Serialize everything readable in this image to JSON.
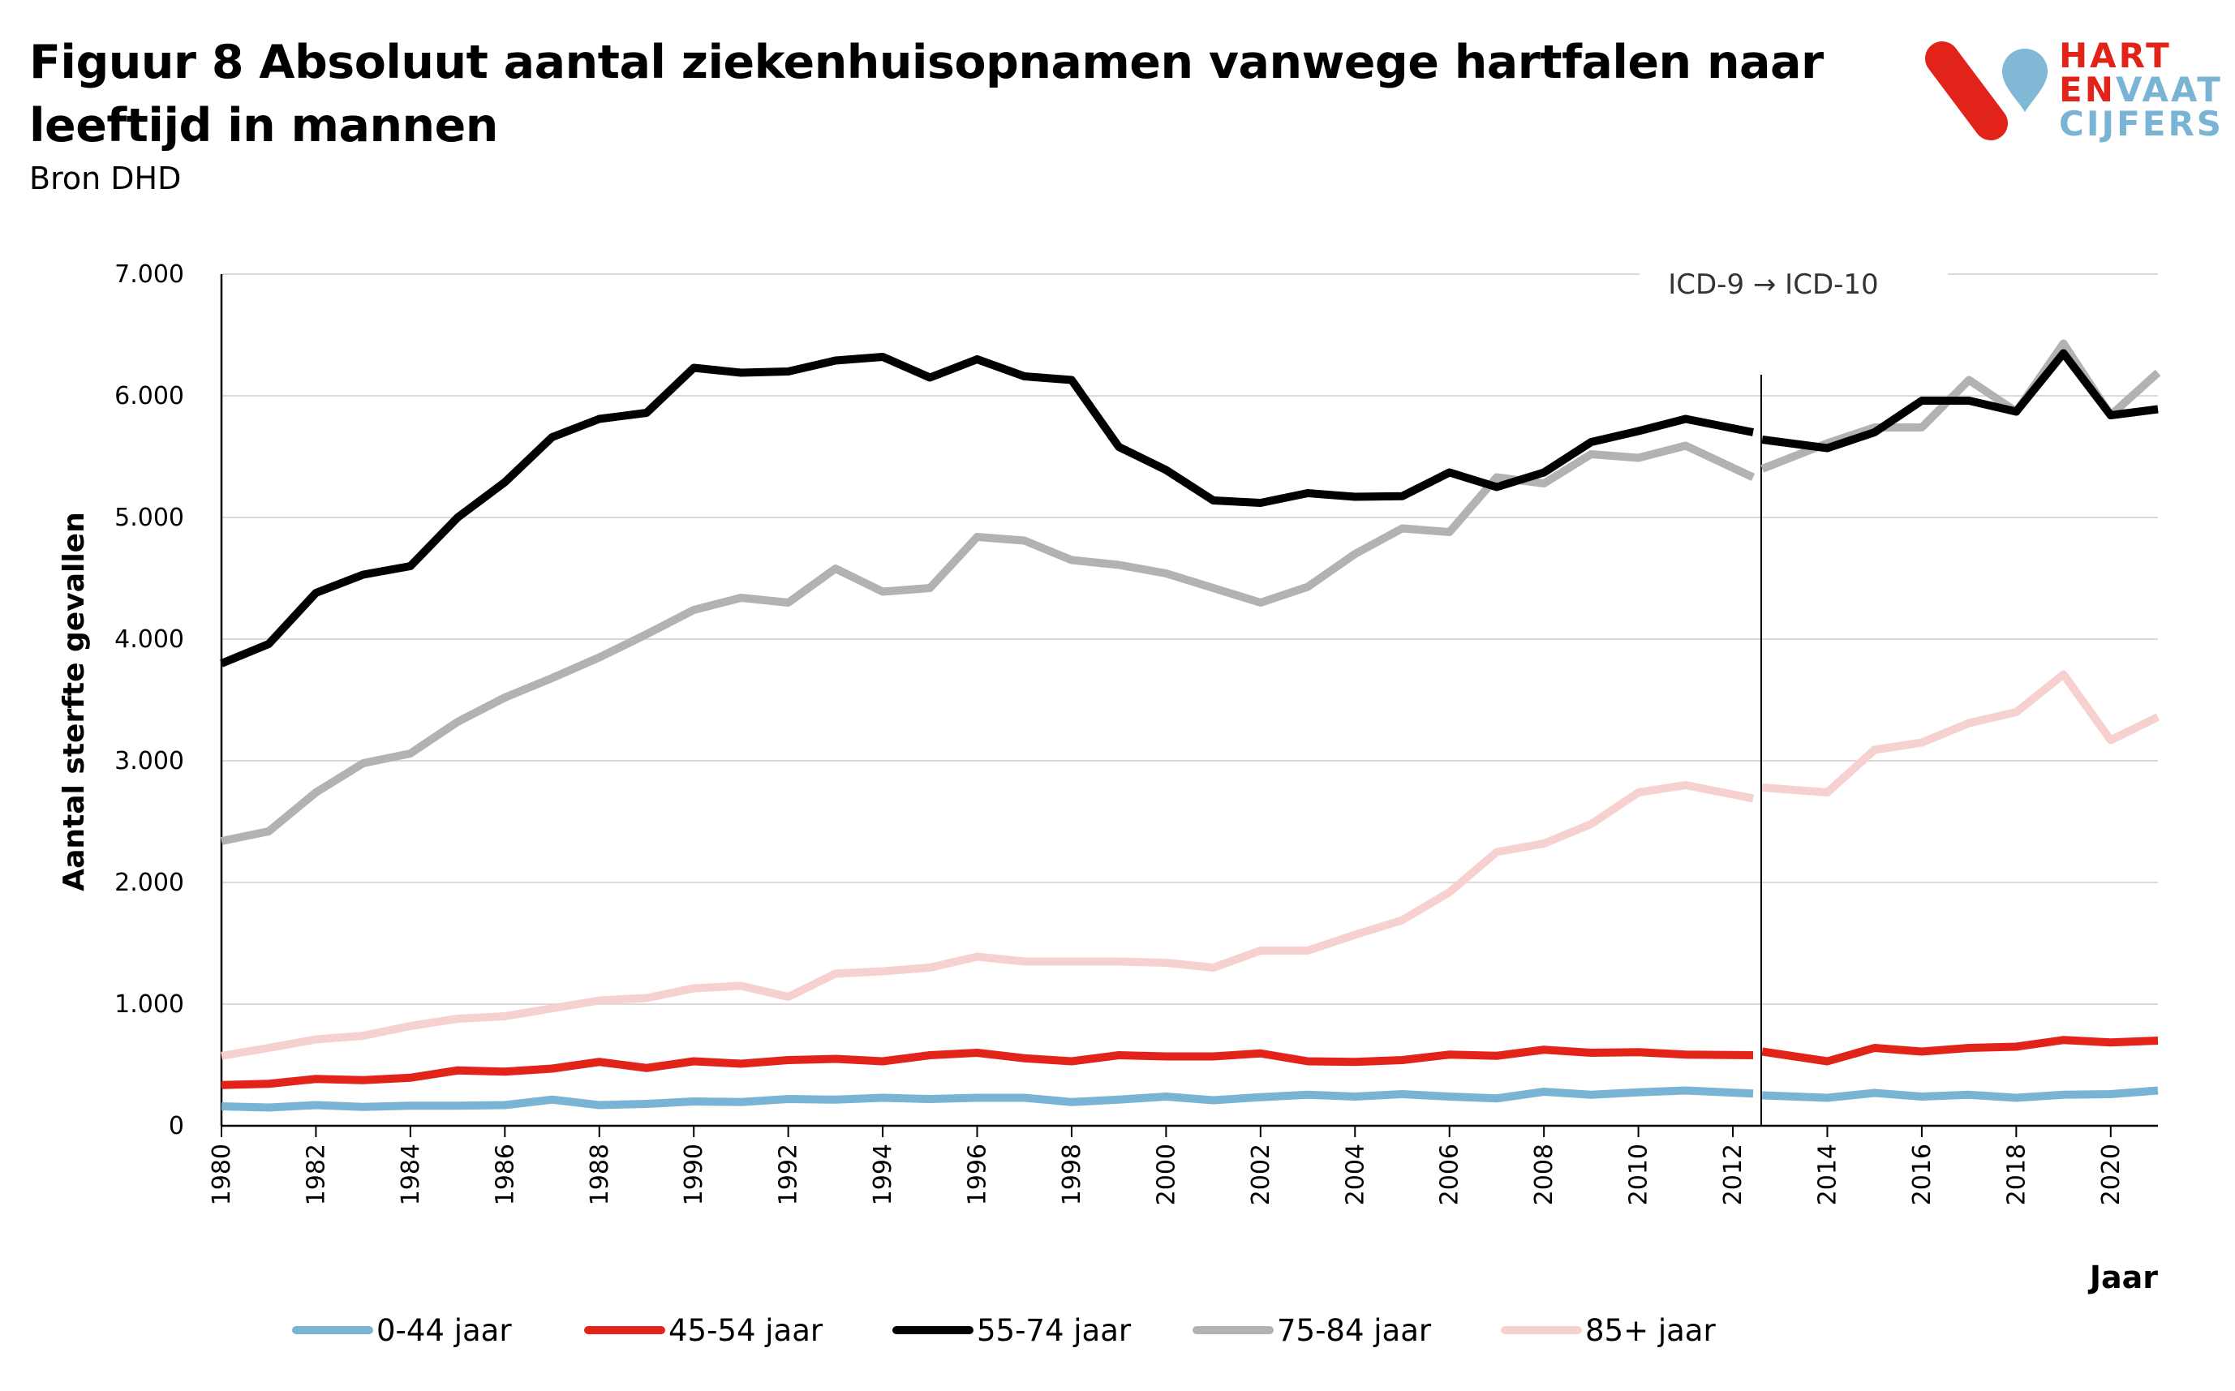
{
  "header": {
    "title": "Figuur 8 Absoluut aantal ziekenhuisopnamen vanwege hartfalen naar leeftijd in mannen",
    "source": "Bron DHD"
  },
  "logo": {
    "line1": "HART",
    "line2a": "EN",
    "line2b": "VAAT",
    "line3": "CIJFERS",
    "colors": {
      "red": "#e2231a",
      "blue": "#7ab4d4"
    }
  },
  "chart_data": {
    "type": "line",
    "title": "Figuur 8 Absoluut aantal ziekenhuisopnamen vanwege hartfalen naar leeftijd in mannen",
    "xlabel": "Jaar",
    "ylabel": "Aantal sterfte gevallen",
    "ylim": [
      0,
      7000
    ],
    "xlim": [
      1980,
      2021
    ],
    "yticks": [
      {
        "value": 0,
        "label": "0"
      },
      {
        "value": 1000,
        "label": "1.000"
      },
      {
        "value": 2000,
        "label": "2.000"
      },
      {
        "value": 3000,
        "label": "3.000"
      },
      {
        "value": 4000,
        "label": "4.000"
      },
      {
        "value": 5000,
        "label": "5.000"
      },
      {
        "value": 6000,
        "label": "6.000"
      },
      {
        "value": 7000,
        "label": "7.000"
      }
    ],
    "xticks": [
      "1980",
      "1982",
      "1984",
      "1986",
      "1988",
      "1990",
      "1992",
      "1994",
      "1996",
      "1998",
      "2000",
      "2002",
      "2004",
      "2006",
      "2008",
      "2010",
      "2012",
      "2014",
      "2016",
      "2018",
      "2020"
    ],
    "grid": true,
    "legend": "bottom",
    "annotation": {
      "text": "ICD-9 → ICD-10",
      "x": 2012.6
    },
    "break_after": 2012,
    "x": [
      1980,
      1981,
      1982,
      1983,
      1984,
      1985,
      1986,
      1987,
      1988,
      1989,
      1990,
      1991,
      1992,
      1993,
      1994,
      1995,
      1996,
      1997,
      1998,
      1999,
      2000,
      2001,
      2002,
      2003,
      2004,
      2005,
      2006,
      2007,
      2008,
      2009,
      2010,
      2011,
      2012,
      2013,
      2014,
      2015,
      2016,
      2017,
      2018,
      2019,
      2020,
      2021
    ],
    "series": [
      {
        "name": "0-44 jaar",
        "color": "#7ab4d4",
        "values": [
          160,
          150,
          170,
          155,
          165,
          165,
          170,
          215,
          170,
          180,
          200,
          195,
          220,
          215,
          230,
          220,
          230,
          230,
          195,
          215,
          240,
          210,
          235,
          255,
          240,
          260,
          240,
          225,
          280,
          255,
          275,
          290,
          265,
          250,
          230,
          270,
          240,
          255,
          230,
          255,
          260,
          290
        ]
      },
      {
        "name": "45-54 jaar",
        "color": "#e2231a",
        "values": [
          335,
          345,
          385,
          375,
          395,
          455,
          445,
          470,
          525,
          475,
          530,
          510,
          540,
          550,
          530,
          580,
          600,
          555,
          530,
          580,
          570,
          570,
          595,
          530,
          525,
          540,
          585,
          575,
          625,
          600,
          605,
          585,
          580,
          610,
          530,
          640,
          610,
          640,
          650,
          705,
          685,
          700
        ]
      },
      {
        "name": "55-74 jaar",
        "color": "#000000",
        "values": [
          3800,
          3960,
          4380,
          4530,
          4600,
          5000,
          5290,
          5660,
          5810,
          5860,
          6230,
          6190,
          6200,
          6290,
          6320,
          6150,
          6300,
          6160,
          6130,
          5580,
          5390,
          5140,
          5120,
          5200,
          5170,
          5175,
          5370,
          5250,
          5370,
          5620,
          5710,
          5810,
          5700,
          5640,
          5570,
          5700,
          5960,
          5960,
          5870,
          6350,
          5840,
          5890
        ]
      },
      {
        "name": "75-84 jaar",
        "color": "#b2b2b2",
        "values": [
          2340,
          2420,
          2740,
          2980,
          3060,
          3320,
          3520,
          3680,
          3850,
          4040,
          4240,
          4340,
          4300,
          4580,
          4390,
          4420,
          4840,
          4810,
          4650,
          4610,
          4540,
          4420,
          4300,
          4430,
          4700,
          4910,
          4880,
          5330,
          5280,
          5520,
          5490,
          5590,
          5330,
          5400,
          5610,
          5740,
          5740,
          6130,
          5870,
          6430,
          5840,
          6190
        ]
      },
      {
        "name": "85+ jaar",
        "color": "#f6d1cf",
        "values": [
          575,
          640,
          710,
          740,
          820,
          880,
          900,
          965,
          1030,
          1050,
          1130,
          1150,
          1060,
          1250,
          1270,
          1300,
          1390,
          1350,
          1350,
          1350,
          1340,
          1300,
          1440,
          1440,
          1570,
          1690,
          1920,
          2250,
          2320,
          2480,
          2740,
          2800,
          2690,
          2780,
          2740,
          3090,
          3150,
          3310,
          3400,
          3710,
          3170,
          3360
        ]
      }
    ]
  }
}
